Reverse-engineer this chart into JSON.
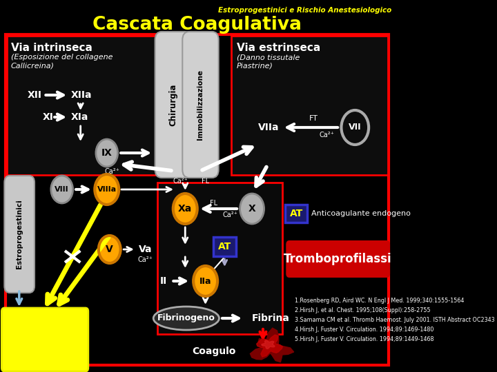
{
  "bg_color": "#000000",
  "title_main": "Cascata Coagulativa",
  "title_top": "Estroprogestinici e Rischio Anestesiologico",
  "title_color": "#ffff00",
  "title_top_color": "#ffff00",
  "references": [
    "1.Rosenberg RD, Aird WC. N Engl J Med. 1999;340:1555-1564",
    "2.Hirsh J, et al. Chest. 1995;108(Suppl):258-2755",
    "3.Samama CM et al. Thromb Haemost. July 2001. ISTH Abstract OC2343",
    "4.Hirsh J, Fuster V. Circulation. 1994;89:1469-1480",
    "5.Hirsh J, Fuster V. Circulation. 1994;89:1449-1468"
  ]
}
